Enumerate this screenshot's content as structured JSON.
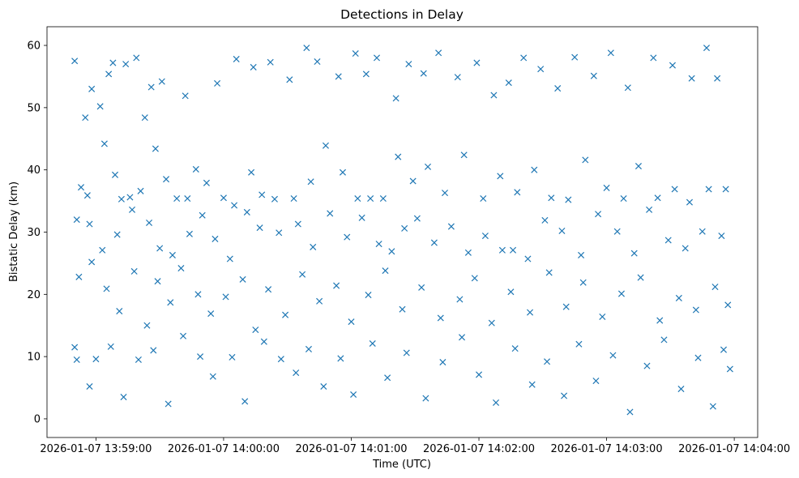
{
  "chart_data": {
    "type": "scatter",
    "title": "Detections in Delay",
    "xlabel": "Time (UTC)",
    "ylabel": "Bistatic Delay (km)",
    "marker": "x",
    "color": "#1f77b4",
    "grid": false,
    "legend": "none",
    "x_axis_type": "time",
    "xlim": [
      "2026-01-07 13:58:37",
      "2026-01-07 14:04:11"
    ],
    "ylim": [
      -3,
      63
    ],
    "x_ticks": [
      "2026-01-07 13:59:00",
      "2026-01-07 14:00:00",
      "2026-01-07 14:01:00",
      "2026-01-07 14:02:00",
      "2026-01-07 14:03:00",
      "2026-01-07 14:04:00"
    ],
    "y_ticks": [
      "0",
      "10",
      "20",
      "30",
      "40",
      "50",
      "60"
    ],
    "points": [
      [
        "13:58:50",
        57.5
      ],
      [
        "13:58:55",
        48.4
      ],
      [
        "13:58:58",
        53.0
      ],
      [
        "13:59:02",
        50.2
      ],
      [
        "13:59:06",
        55.4
      ],
      [
        "13:59:08",
        57.2
      ],
      [
        "13:59:14",
        57.0
      ],
      [
        "13:59:19",
        58.0
      ],
      [
        "13:59:23",
        48.4
      ],
      [
        "13:59:26",
        53.3
      ],
      [
        "13:59:31",
        54.2
      ],
      [
        "13:59:42",
        51.9
      ],
      [
        "13:59:57",
        53.9
      ],
      [
        "14:00:06",
        57.8
      ],
      [
        "14:00:14",
        56.5
      ],
      [
        "14:00:22",
        57.3
      ],
      [
        "14:00:31",
        54.5
      ],
      [
        "14:00:39",
        59.6
      ],
      [
        "14:00:44",
        57.4
      ],
      [
        "14:00:54",
        55.0
      ],
      [
        "14:01:02",
        58.7
      ],
      [
        "14:01:07",
        55.4
      ],
      [
        "14:01:12",
        58.0
      ],
      [
        "14:01:21",
        51.5
      ],
      [
        "14:01:27",
        57.0
      ],
      [
        "14:01:34",
        55.5
      ],
      [
        "14:01:41",
        58.8
      ],
      [
        "14:01:50",
        54.9
      ],
      [
        "14:01:59",
        57.2
      ],
      [
        "14:02:07",
        52.0
      ],
      [
        "14:02:14",
        54.0
      ],
      [
        "14:02:21",
        58.0
      ],
      [
        "14:02:29",
        56.2
      ],
      [
        "14:02:37",
        53.1
      ],
      [
        "14:02:45",
        58.1
      ],
      [
        "14:02:54",
        55.1
      ],
      [
        "14:03:02",
        58.8
      ],
      [
        "14:03:10",
        53.2
      ],
      [
        "14:03:22",
        58.0
      ],
      [
        "14:03:31",
        56.8
      ],
      [
        "14:03:40",
        54.7
      ],
      [
        "14:03:47",
        59.6
      ],
      [
        "14:03:52",
        54.7
      ],
      [
        "13:58:53",
        37.2
      ],
      [
        "13:58:56",
        35.9
      ],
      [
        "13:59:04",
        44.2
      ],
      [
        "13:59:09",
        39.2
      ],
      [
        "13:59:12",
        35.3
      ],
      [
        "13:59:16",
        35.6
      ],
      [
        "13:59:21",
        36.6
      ],
      [
        "13:59:28",
        43.4
      ],
      [
        "13:59:33",
        38.5
      ],
      [
        "13:59:38",
        35.4
      ],
      [
        "13:59:43",
        35.4
      ],
      [
        "13:59:47",
        40.1
      ],
      [
        "13:59:52",
        37.9
      ],
      [
        "14:00:00",
        35.5
      ],
      [
        "14:00:05",
        34.3
      ],
      [
        "14:00:13",
        39.6
      ],
      [
        "14:00:18",
        36.0
      ],
      [
        "14:00:24",
        35.3
      ],
      [
        "14:00:33",
        35.4
      ],
      [
        "14:00:41",
        38.1
      ],
      [
        "14:00:48",
        43.9
      ],
      [
        "14:00:56",
        39.6
      ],
      [
        "14:01:03",
        35.4
      ],
      [
        "14:01:09",
        35.4
      ],
      [
        "14:01:15",
        35.4
      ],
      [
        "14:01:22",
        42.1
      ],
      [
        "14:01:29",
        38.2
      ],
      [
        "14:01:36",
        40.5
      ],
      [
        "14:01:44",
        36.3
      ],
      [
        "14:01:53",
        42.4
      ],
      [
        "14:02:02",
        35.4
      ],
      [
        "14:02:10",
        39.0
      ],
      [
        "14:02:18",
        36.4
      ],
      [
        "14:02:26",
        40.0
      ],
      [
        "14:02:34",
        35.5
      ],
      [
        "14:02:42",
        35.2
      ],
      [
        "14:02:50",
        41.6
      ],
      [
        "14:03:00",
        37.1
      ],
      [
        "14:03:08",
        35.4
      ],
      [
        "14:03:15",
        40.6
      ],
      [
        "14:03:24",
        35.5
      ],
      [
        "14:03:32",
        36.9
      ],
      [
        "14:03:39",
        34.8
      ],
      [
        "14:03:48",
        36.9
      ],
      [
        "14:03:56",
        36.9
      ],
      [
        "13:58:51",
        32.0
      ],
      [
        "13:58:57",
        31.3
      ],
      [
        "13:59:03",
        27.1
      ],
      [
        "13:59:10",
        29.6
      ],
      [
        "13:59:17",
        33.6
      ],
      [
        "13:59:25",
        31.5
      ],
      [
        "13:59:30",
        27.4
      ],
      [
        "13:59:36",
        26.3
      ],
      [
        "13:59:44",
        29.7
      ],
      [
        "13:59:50",
        32.7
      ],
      [
        "13:59:56",
        28.9
      ],
      [
        "14:00:03",
        25.7
      ],
      [
        "14:00:11",
        33.2
      ],
      [
        "14:00:17",
        30.7
      ],
      [
        "14:00:26",
        29.9
      ],
      [
        "14:00:35",
        31.3
      ],
      [
        "14:00:42",
        27.6
      ],
      [
        "14:00:50",
        33.0
      ],
      [
        "14:00:58",
        29.2
      ],
      [
        "14:01:05",
        32.3
      ],
      [
        "14:01:13",
        28.1
      ],
      [
        "14:01:19",
        26.9
      ],
      [
        "14:01:25",
        30.6
      ],
      [
        "14:01:31",
        32.2
      ],
      [
        "14:01:39",
        28.3
      ],
      [
        "14:01:47",
        30.9
      ],
      [
        "14:01:55",
        26.7
      ],
      [
        "14:02:03",
        29.4
      ],
      [
        "14:02:11",
        27.1
      ],
      [
        "14:02:16",
        27.1
      ],
      [
        "14:02:23",
        25.7
      ],
      [
        "14:02:31",
        31.9
      ],
      [
        "14:02:39",
        30.2
      ],
      [
        "14:02:48",
        26.3
      ],
      [
        "14:02:56",
        32.9
      ],
      [
        "14:03:05",
        30.1
      ],
      [
        "14:03:13",
        26.6
      ],
      [
        "14:03:20",
        33.6
      ],
      [
        "14:03:29",
        28.7
      ],
      [
        "14:03:37",
        27.4
      ],
      [
        "14:03:45",
        30.1
      ],
      [
        "14:03:54",
        29.4
      ],
      [
        "13:58:52",
        22.8
      ],
      [
        "13:58:58",
        25.2
      ],
      [
        "13:59:05",
        20.9
      ],
      [
        "13:59:11",
        17.3
      ],
      [
        "13:59:18",
        23.7
      ],
      [
        "13:59:24",
        15.0
      ],
      [
        "13:59:29",
        22.1
      ],
      [
        "13:59:35",
        18.7
      ],
      [
        "13:59:40",
        24.2
      ],
      [
        "13:59:48",
        20.0
      ],
      [
        "13:59:54",
        16.9
      ],
      [
        "14:00:01",
        19.6
      ],
      [
        "14:00:09",
        22.4
      ],
      [
        "14:00:15",
        14.3
      ],
      [
        "14:00:21",
        20.8
      ],
      [
        "14:00:29",
        16.7
      ],
      [
        "14:00:37",
        23.2
      ],
      [
        "14:00:45",
        18.9
      ],
      [
        "14:00:53",
        21.4
      ],
      [
        "14:01:00",
        15.6
      ],
      [
        "14:01:08",
        19.9
      ],
      [
        "14:01:16",
        23.8
      ],
      [
        "14:01:24",
        17.6
      ],
      [
        "14:01:33",
        21.1
      ],
      [
        "14:01:42",
        16.2
      ],
      [
        "14:01:51",
        19.2
      ],
      [
        "14:01:58",
        22.6
      ],
      [
        "14:02:06",
        15.4
      ],
      [
        "14:02:15",
        20.4
      ],
      [
        "14:02:24",
        17.1
      ],
      [
        "14:02:33",
        23.5
      ],
      [
        "14:02:41",
        18.0
      ],
      [
        "14:02:49",
        21.9
      ],
      [
        "14:02:58",
        16.4
      ],
      [
        "14:03:07",
        20.1
      ],
      [
        "14:03:16",
        22.7
      ],
      [
        "14:03:25",
        15.8
      ],
      [
        "14:03:34",
        19.4
      ],
      [
        "14:03:42",
        17.5
      ],
      [
        "14:03:51",
        21.2
      ],
      [
        "14:03:57",
        18.3
      ],
      [
        "13:58:50",
        11.5
      ],
      [
        "13:58:51",
        9.5
      ],
      [
        "13:58:57",
        5.2
      ],
      [
        "13:59:00",
        9.6
      ],
      [
        "13:59:07",
        11.6
      ],
      [
        "13:59:13",
        3.5
      ],
      [
        "13:59:20",
        9.5
      ],
      [
        "13:59:27",
        11.0
      ],
      [
        "13:59:34",
        2.4
      ],
      [
        "13:59:41",
        13.3
      ],
      [
        "13:59:49",
        10.0
      ],
      [
        "13:59:55",
        6.8
      ],
      [
        "14:00:04",
        9.9
      ],
      [
        "14:00:10",
        2.8
      ],
      [
        "14:00:19",
        12.4
      ],
      [
        "14:00:27",
        9.6
      ],
      [
        "14:00:34",
        7.4
      ],
      [
        "14:00:40",
        11.2
      ],
      [
        "14:00:47",
        5.2
      ],
      [
        "14:00:55",
        9.7
      ],
      [
        "14:01:01",
        3.9
      ],
      [
        "14:01:10",
        12.1
      ],
      [
        "14:01:17",
        6.6
      ],
      [
        "14:01:26",
        10.6
      ],
      [
        "14:01:35",
        3.3
      ],
      [
        "14:01:43",
        9.1
      ],
      [
        "14:01:52",
        13.1
      ],
      [
        "14:02:00",
        7.1
      ],
      [
        "14:02:08",
        2.6
      ],
      [
        "14:02:17",
        11.3
      ],
      [
        "14:02:25",
        5.5
      ],
      [
        "14:02:32",
        9.2
      ],
      [
        "14:02:40",
        3.7
      ],
      [
        "14:02:47",
        12.0
      ],
      [
        "14:02:55",
        6.1
      ],
      [
        "14:03:03",
        10.2
      ],
      [
        "14:03:11",
        1.1
      ],
      [
        "14:03:19",
        8.5
      ],
      [
        "14:03:27",
        12.7
      ],
      [
        "14:03:35",
        4.8
      ],
      [
        "14:03:43",
        9.8
      ],
      [
        "14:03:50",
        2.0
      ],
      [
        "14:03:55",
        11.1
      ],
      [
        "14:03:58",
        8.0
      ]
    ]
  }
}
